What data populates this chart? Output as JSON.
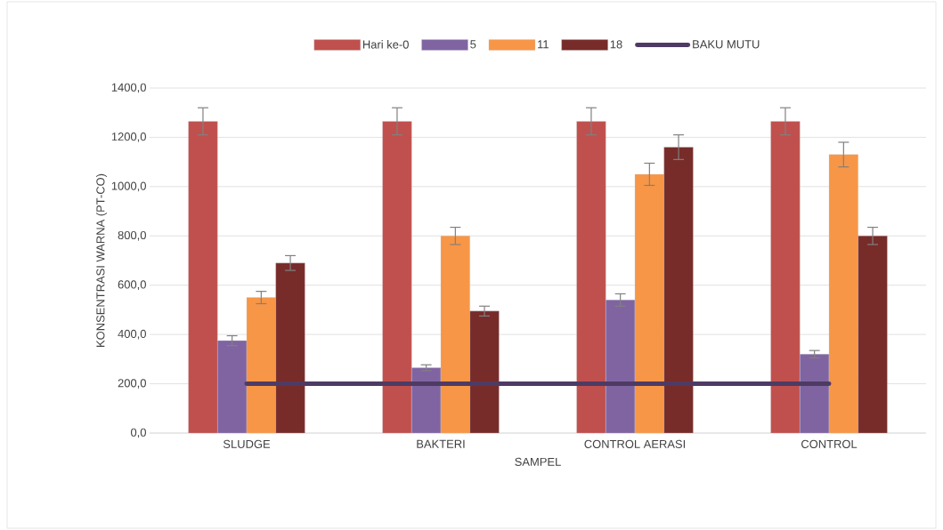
{
  "chart_data": {
    "type": "bar",
    "ylabel": "KONSENTRASI WARNA (PT-CO)",
    "xlabel": "SAMPEL",
    "categories": [
      "SLUDGE",
      "BAKTERI",
      "CONTROL AERASI",
      "CONTROL"
    ],
    "ylim": [
      0,
      1400
    ],
    "yticks": [
      {
        "value": 0,
        "label": "0,0"
      },
      {
        "value": 200,
        "label": "200,0"
      },
      {
        "value": 400,
        "label": "400,0"
      },
      {
        "value": 600,
        "label": "600,0"
      },
      {
        "value": 800,
        "label": "800,0"
      },
      {
        "value": 1000,
        "label": "1000,0"
      },
      {
        "value": 1200,
        "label": "1200,0"
      },
      {
        "value": 1400,
        "label": "1400,0"
      }
    ],
    "grid": "y",
    "legend": "top",
    "series": [
      {
        "name": "Hari ke-0",
        "color": "#c0504d",
        "values": [
          1265,
          1265,
          1265,
          1265
        ],
        "errors": [
          55,
          55,
          55,
          55
        ]
      },
      {
        "name": "5",
        "color": "#8064a2",
        "values": [
          375,
          265,
          540,
          320
        ],
        "errors": [
          20,
          12,
          25,
          15
        ]
      },
      {
        "name": "11",
        "color": "#f79646",
        "values": [
          550,
          800,
          1050,
          1130
        ],
        "errors": [
          25,
          35,
          45,
          50
        ]
      },
      {
        "name": "18",
        "color": "#772c2a",
        "values": [
          690,
          495,
          1160,
          800
        ],
        "errors": [
          30,
          20,
          50,
          35
        ]
      },
      {
        "name": "BAKU MUTU",
        "type": "line",
        "color": "#4e3b64",
        "values": [
          200,
          200,
          200,
          200
        ]
      }
    ]
  }
}
